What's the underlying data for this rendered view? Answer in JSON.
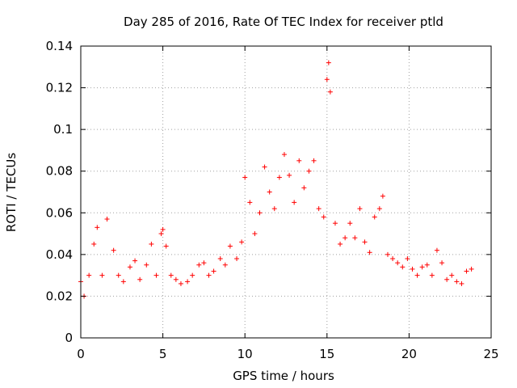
{
  "chart_data": {
    "type": "scatter",
    "title": "Day 285 of 2016, Rate Of TEC Index for receiver ptld",
    "xlabel": "GPS time / hours",
    "ylabel": "ROTI / TECUs",
    "xlim": [
      0,
      25
    ],
    "ylim": [
      0,
      0.14
    ],
    "xticks": [
      "0",
      "5",
      "10",
      "15",
      "20",
      "25"
    ],
    "yticks": [
      "0",
      "0.02",
      "0.04",
      "0.06",
      "0.08",
      "0.1",
      "0.12",
      "0.14"
    ],
    "grid": true,
    "marker": "+",
    "color": "#ff0000",
    "series": [
      {
        "name": "ROTI",
        "x": [
          0.0,
          0.2,
          0.5,
          0.8,
          1.0,
          1.3,
          1.6,
          2.0,
          2.3,
          2.6,
          3.0,
          3.3,
          3.6,
          4.0,
          4.3,
          4.6,
          4.9,
          5.0,
          5.2,
          5.5,
          5.8,
          6.1,
          6.5,
          6.8,
          7.2,
          7.5,
          7.8,
          8.1,
          8.5,
          8.8,
          9.1,
          9.5,
          9.8,
          10.0,
          10.3,
          10.6,
          10.9,
          11.2,
          11.5,
          11.8,
          12.1,
          12.4,
          12.7,
          13.0,
          13.3,
          13.6,
          13.9,
          14.2,
          14.5,
          14.8,
          15.0,
          15.1,
          15.2,
          15.5,
          15.8,
          16.1,
          16.4,
          16.7,
          17.0,
          17.3,
          17.6,
          17.9,
          18.2,
          18.4,
          18.7,
          19.0,
          19.3,
          19.6,
          19.9,
          20.2,
          20.5,
          20.8,
          21.1,
          21.4,
          21.7,
          22.0,
          22.3,
          22.6,
          22.9,
          23.2,
          23.5,
          23.8
        ],
        "y": [
          0.027,
          0.02,
          0.03,
          0.045,
          0.053,
          0.03,
          0.057,
          0.042,
          0.03,
          0.027,
          0.034,
          0.037,
          0.028,
          0.035,
          0.045,
          0.03,
          0.05,
          0.052,
          0.044,
          0.03,
          0.028,
          0.026,
          0.027,
          0.03,
          0.035,
          0.036,
          0.03,
          0.032,
          0.038,
          0.035,
          0.044,
          0.038,
          0.046,
          0.077,
          0.065,
          0.05,
          0.06,
          0.082,
          0.07,
          0.062,
          0.077,
          0.088,
          0.078,
          0.065,
          0.085,
          0.072,
          0.08,
          0.085,
          0.062,
          0.058,
          0.124,
          0.132,
          0.118,
          0.055,
          0.045,
          0.048,
          0.055,
          0.048,
          0.062,
          0.046,
          0.041,
          0.058,
          0.062,
          0.068,
          0.04,
          0.038,
          0.036,
          0.034,
          0.038,
          0.033,
          0.03,
          0.034,
          0.035,
          0.03,
          0.042,
          0.036,
          0.028,
          0.03,
          0.027,
          0.026,
          0.032,
          0.033
        ]
      }
    ]
  }
}
